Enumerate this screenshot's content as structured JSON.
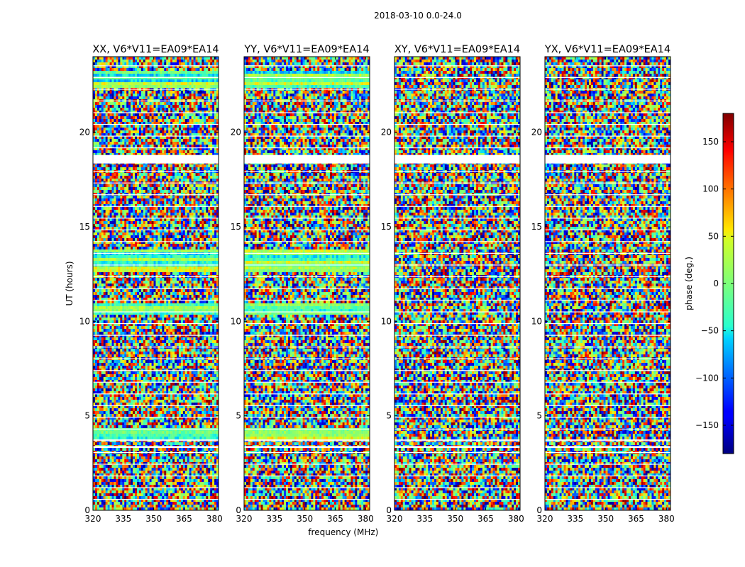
{
  "figure": {
    "suptitle": "2018-03-10 0.0-24.0",
    "colormap": "jet",
    "frame_color": "#000000",
    "background": "#ffffff"
  },
  "chart_data": [
    {
      "type": "heatmap",
      "title": "XX, V6*V11=EA09*EA14",
      "xlabel": "",
      "ylabel": "UT (hours)",
      "xlim": [
        320,
        382
      ],
      "ylim": [
        0,
        24
      ],
      "xticks": [
        "320",
        "335",
        "350",
        "365",
        "380"
      ],
      "yticks": [
        "0",
        "5",
        "10",
        "15",
        "20"
      ],
      "value_label": "phase (deg.)",
      "value_range": [
        -180,
        180
      ],
      "flagged_bands_hours": [
        [
          3.3,
          3.4
        ],
        [
          3.7,
          3.75
        ],
        [
          18.35,
          18.8
        ]
      ],
      "coherent_bands_hours": [
        [
          3.8,
          4.4
        ],
        [
          10.3,
          10.9
        ],
        [
          12.6,
          13.8
        ],
        [
          22.4,
          23.3
        ]
      ]
    },
    {
      "type": "heatmap",
      "title": "YY, V6*V11=EA09*EA14",
      "xlabel": "frequency (MHz)",
      "ylabel": "",
      "xlim": [
        320,
        382
      ],
      "ylim": [
        0,
        24
      ],
      "xticks": [
        "320",
        "335",
        "350",
        "365",
        "380"
      ],
      "yticks": [
        "0",
        "5",
        "10",
        "15",
        "20"
      ],
      "value_label": "phase (deg.)",
      "value_range": [
        -180,
        180
      ],
      "flagged_bands_hours": [
        [
          3.3,
          3.4
        ],
        [
          3.7,
          3.75
        ],
        [
          18.35,
          18.8
        ]
      ],
      "coherent_bands_hours": [
        [
          3.8,
          4.4
        ],
        [
          10.3,
          10.9
        ],
        [
          12.6,
          13.8
        ],
        [
          22.4,
          23.3
        ]
      ]
    },
    {
      "type": "heatmap",
      "title": "XY, V6*V11=EA09*EA14",
      "xlabel": "",
      "ylabel": "",
      "xlim": [
        320,
        382
      ],
      "ylim": [
        0,
        24
      ],
      "xticks": [
        "320",
        "335",
        "350",
        "365",
        "380"
      ],
      "yticks": [
        "0",
        "5",
        "10",
        "15",
        "20"
      ],
      "value_label": "phase (deg.)",
      "value_range": [
        -180,
        180
      ],
      "flagged_bands_hours": [
        [
          3.3,
          3.4
        ],
        [
          3.7,
          3.75
        ],
        [
          18.35,
          18.8
        ]
      ],
      "coherent_bands_hours": []
    },
    {
      "type": "heatmap",
      "title": "YX, V6*V11=EA09*EA14",
      "xlabel": "",
      "ylabel": "",
      "xlim": [
        320,
        382
      ],
      "ylim": [
        0,
        24
      ],
      "xticks": [
        "320",
        "335",
        "350",
        "365",
        "380"
      ],
      "yticks": [
        "0",
        "5",
        "10",
        "15",
        "20"
      ],
      "value_label": "phase (deg.)",
      "value_range": [
        -180,
        180
      ],
      "flagged_bands_hours": [
        [
          3.3,
          3.4
        ],
        [
          3.7,
          3.75
        ],
        [
          18.35,
          18.8
        ]
      ],
      "coherent_bands_hours": []
    }
  ],
  "colorbar": {
    "label": "phase (deg.)",
    "range": [
      -180,
      180
    ],
    "ticks": [
      "150",
      "100",
      "50",
      "0",
      "−50",
      "−100",
      "−150"
    ],
    "tick_values": [
      150,
      100,
      50,
      0,
      -50,
      -100,
      -150
    ]
  }
}
